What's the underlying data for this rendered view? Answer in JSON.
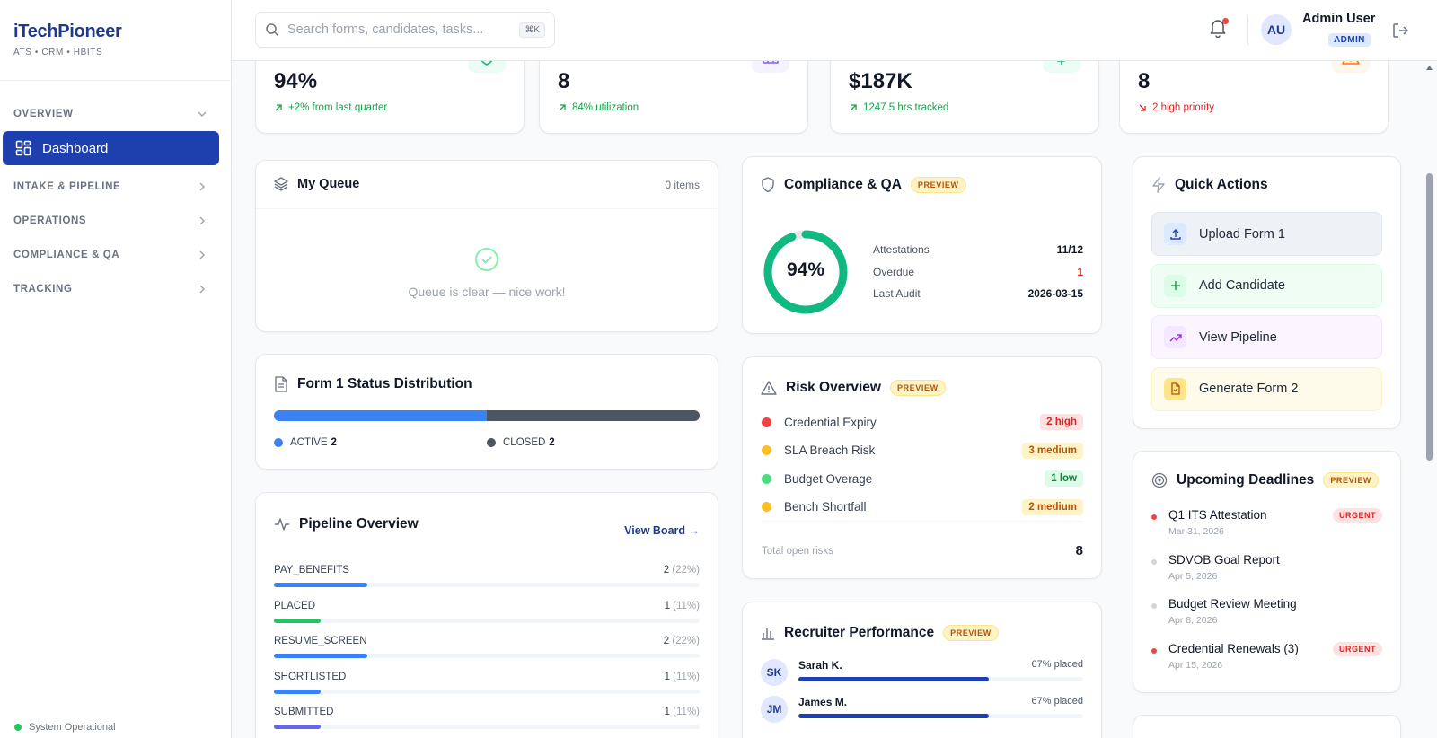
{
  "brand": {
    "name": "iTechPioneer",
    "subtitle": "ATS • CRM • HBITS"
  },
  "nav": {
    "overview": "OVERVIEW",
    "dashboard": "Dashboard",
    "intake": "INTAKE & PIPELINE",
    "operations": "OPERATIONS",
    "compliance": "COMPLIANCE & QA",
    "tracking": "TRACKING"
  },
  "system_status": "System Operational",
  "search": {
    "placeholder": "Search forms, candidates, tasks...",
    "shortcut": "⌘K"
  },
  "user": {
    "initials": "AU",
    "name": "Admin User",
    "role": "ADMIN"
  },
  "stats": [
    {
      "value": "94%",
      "sub": "+2% from last quarter",
      "trend": "up",
      "icon": "shield-icon",
      "color": "#16a34a"
    },
    {
      "value": "8",
      "sub": "84% utilization",
      "trend": "up",
      "icon": "columns-icon",
      "color": "#16a34a"
    },
    {
      "value": "$187K",
      "sub": "1247.5 hrs tracked",
      "trend": "up",
      "icon": "dollar-icon",
      "color": "#16a34a"
    },
    {
      "value": "8",
      "sub": "2 high priority",
      "trend": "down",
      "icon": "warning-icon",
      "color": "#dc2626"
    }
  ],
  "queue": {
    "title": "My Queue",
    "count": "0 items",
    "empty": "Queue is clear — nice work!"
  },
  "form_status": {
    "title": "Form 1 Status Distribution",
    "segments": [
      {
        "label": "ACTIVE",
        "count": "2",
        "value": 2,
        "color": "#3b82f6"
      },
      {
        "label": "CLOSED",
        "count": "2",
        "value": 2,
        "color": "#4b5563"
      }
    ]
  },
  "pipeline": {
    "title": "Pipeline Overview",
    "link": "View Board →",
    "stages": [
      {
        "label": "PAY_BENEFITS",
        "count": "2",
        "pct": "(22%)",
        "value": 22,
        "color": "#3b82f6"
      },
      {
        "label": "PLACED",
        "count": "1",
        "pct": "(11%)",
        "value": 11,
        "color": "#22c55e"
      },
      {
        "label": "RESUME_SCREEN",
        "count": "2",
        "pct": "(22%)",
        "value": 22,
        "color": "#3b82f6"
      },
      {
        "label": "SHORTLISTED",
        "count": "1",
        "pct": "(11%)",
        "value": 11,
        "color": "#3b82f6"
      },
      {
        "label": "SUBMITTED",
        "count": "1",
        "pct": "(11%)",
        "value": 11,
        "color": "#6366f1"
      }
    ]
  },
  "compliance": {
    "title": "Compliance & QA",
    "badge": "PREVIEW",
    "score": "94%",
    "score_value": 94,
    "rows": [
      {
        "label": "Attestations",
        "value": "11/12",
        "color": "#111827"
      },
      {
        "label": "Overdue",
        "value": "1",
        "color": "#dc2626"
      },
      {
        "label": "Last Audit",
        "value": "2026-03-15",
        "color": "#111827"
      }
    ]
  },
  "risk": {
    "title": "Risk Overview",
    "badge": "PREVIEW",
    "items": [
      {
        "name": "Credential Expiry",
        "badge": "2 high",
        "dot": "#ef4444",
        "fg": "#dc2626",
        "bg": "#fee2e2"
      },
      {
        "name": "SLA Breach Risk",
        "badge": "3 medium",
        "dot": "#fbbf24",
        "fg": "#b45309",
        "bg": "#fef3c7"
      },
      {
        "name": "Budget Overage",
        "badge": "1 low",
        "dot": "#4ade80",
        "fg": "#15803d",
        "bg": "#dcfce7"
      },
      {
        "name": "Bench Shortfall",
        "badge": "2 medium",
        "dot": "#fbbf24",
        "fg": "#b45309",
        "bg": "#fef3c7"
      }
    ],
    "total_label": "Total open risks",
    "total": "8"
  },
  "recruiter": {
    "title": "Recruiter Performance",
    "badge": "PREVIEW",
    "rows": [
      {
        "initials": "SK",
        "name": "Sarah K.",
        "pct": "67% placed",
        "value": 67
      },
      {
        "initials": "JM",
        "name": "James M.",
        "pct": "67% placed",
        "value": 67
      }
    ]
  },
  "quick_actions": {
    "title": "Quick Actions",
    "items": [
      {
        "label": "Upload Form 1",
        "icon": "upload-icon",
        "bg": "#eef2f7",
        "border": "#e2e8f0",
        "iconbg": "#dbeafe",
        "iconfg": "#1e40af"
      },
      {
        "label": "Add Candidate",
        "icon": "plus-icon",
        "bg": "#f0fdf4",
        "border": "#dcfce7",
        "iconbg": "#dcfce7",
        "iconfg": "#16a34a"
      },
      {
        "label": "View Pipeline",
        "icon": "trend-icon",
        "bg": "#faf5ff",
        "border": "#f3e8ff",
        "iconbg": "#f3e8ff",
        "iconfg": "#9333ea"
      },
      {
        "label": "Generate Form 2",
        "icon": "file-icon",
        "bg": "#fffbeb",
        "border": "#fef3c7",
        "iconbg": "#fde68a",
        "iconfg": "#b45309"
      }
    ]
  },
  "deadlines": {
    "title": "Upcoming Deadlines",
    "badge": "PREVIEW",
    "items": [
      {
        "title": "Q1 ITS Attestation",
        "date": "Mar 31, 2026",
        "urgent": "URGENT",
        "dot": "#ef4444"
      },
      {
        "title": "SDVOB Goal Report",
        "date": "Apr 5, 2026",
        "urgent": "",
        "dot": "#d1d5db"
      },
      {
        "title": "Budget Review Meeting",
        "date": "Apr 8, 2026",
        "urgent": "",
        "dot": "#d1d5db"
      },
      {
        "title": "Credential Renewals (3)",
        "date": "Apr 15, 2026",
        "urgent": "URGENT",
        "dot": "#ef4444"
      }
    ]
  }
}
